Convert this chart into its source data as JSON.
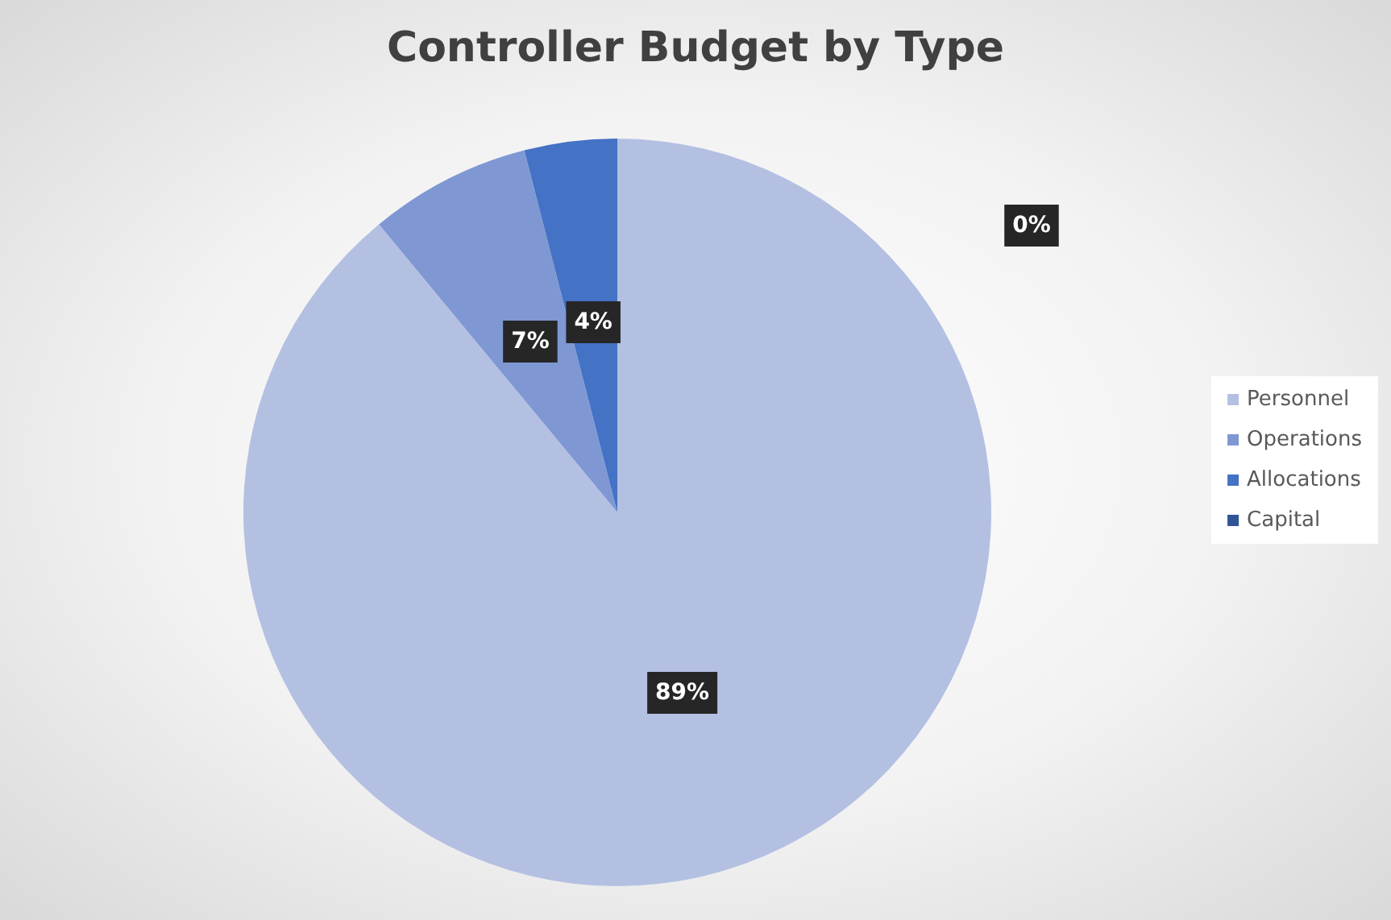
{
  "chart_data": {
    "type": "pie",
    "title": "Controller Budget by Type",
    "categories": [
      "Personnel",
      "Operations",
      "Allocations",
      "Capital"
    ],
    "values": [
      89,
      7,
      4,
      0
    ],
    "colors": [
      "#b4c0e2",
      "#7f98d4",
      "#4472c4",
      "#2f5597"
    ],
    "value_labels": [
      "89%",
      "7%",
      "4%",
      "0%"
    ],
    "legend": "right"
  }
}
